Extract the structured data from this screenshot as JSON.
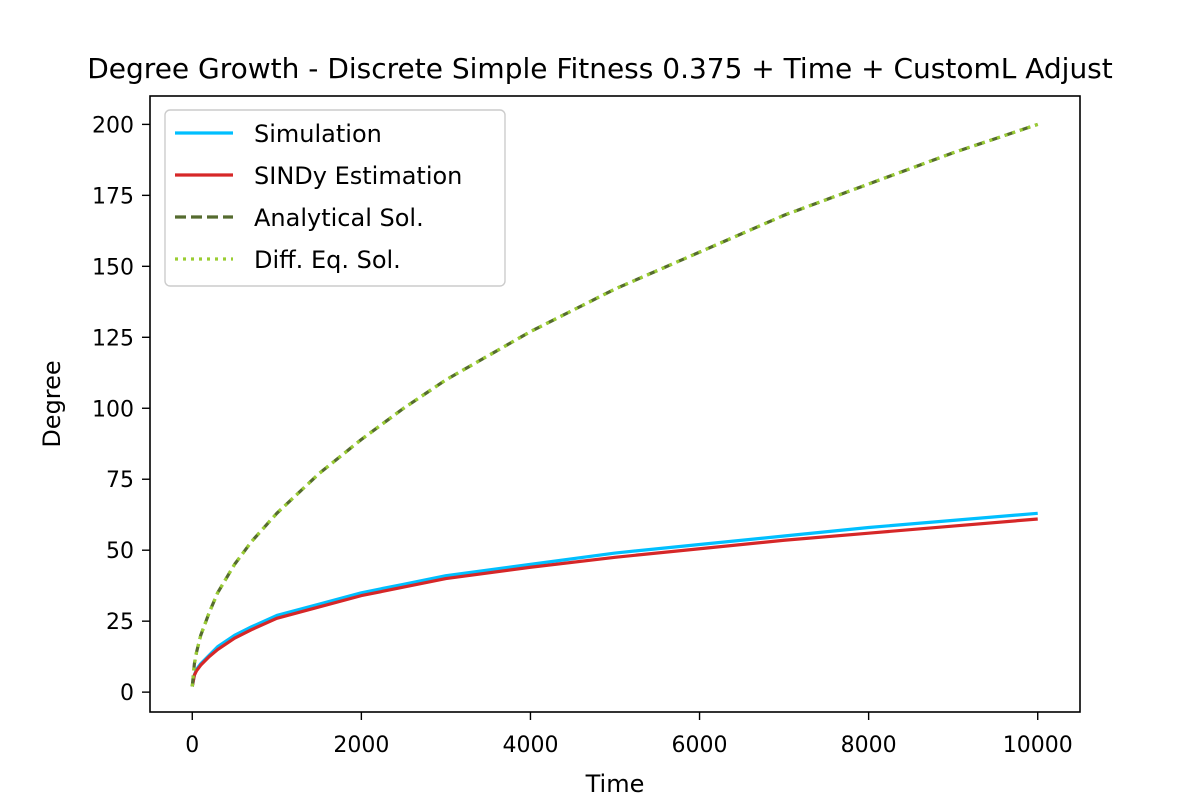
{
  "chart_data": {
    "type": "line",
    "title": "Degree Growth - Discrete Simple Fitness 0.375 + Time + CustomL Adjust",
    "xlabel": "Time",
    "ylabel": "Degree",
    "xlim": [
      -500,
      10500
    ],
    "ylim": [
      -7,
      210
    ],
    "x_ticks": [
      0,
      2000,
      4000,
      6000,
      8000,
      10000
    ],
    "y_ticks": [
      0,
      25,
      50,
      75,
      100,
      125,
      150,
      175,
      200
    ],
    "grid": false,
    "legend_position": "top-left",
    "series": [
      {
        "name": "Simulation",
        "color": "#00bfff",
        "style": "solid",
        "x": [
          0,
          25,
          50,
          100,
          200,
          300,
          500,
          700,
          1000,
          1500,
          2000,
          2500,
          3000,
          4000,
          5000,
          6000,
          7000,
          8000,
          9000,
          10000
        ],
        "y": [
          2,
          6,
          8,
          10,
          13,
          16,
          20,
          23,
          27,
          31,
          35,
          38,
          41,
          45,
          49,
          52,
          55,
          58,
          60.5,
          63
        ]
      },
      {
        "name": "SINDy Estimation",
        "color": "#d62728",
        "style": "solid",
        "x": [
          0,
          25,
          50,
          100,
          200,
          300,
          500,
          700,
          1000,
          1500,
          2000,
          2500,
          3000,
          4000,
          5000,
          6000,
          7000,
          8000,
          9000,
          10000
        ],
        "y": [
          2,
          6,
          7.5,
          9.5,
          12.5,
          15,
          19,
          22,
          26,
          30,
          34,
          37,
          40,
          44,
          47.5,
          50.5,
          53.5,
          56,
          58.5,
          61
        ]
      },
      {
        "name": "Analytical Sol.",
        "color": "#556b2f",
        "style": "dashed",
        "x": [
          0,
          25,
          50,
          100,
          200,
          300,
          500,
          700,
          1000,
          1500,
          2000,
          2500,
          3000,
          4000,
          5000,
          6000,
          7000,
          8000,
          9000,
          10000
        ],
        "y": [
          2,
          10,
          14,
          20,
          28,
          35,
          45,
          53,
          63,
          77,
          89,
          100,
          110,
          127,
          142,
          155,
          168,
          179,
          190,
          200
        ]
      },
      {
        "name": "Diff. Eq. Sol.",
        "color": "#9acd32",
        "style": "dotted",
        "x": [
          0,
          25,
          50,
          100,
          200,
          300,
          500,
          700,
          1000,
          1500,
          2000,
          2500,
          3000,
          4000,
          5000,
          6000,
          7000,
          8000,
          9000,
          10000
        ],
        "y": [
          2,
          10,
          14,
          20,
          28,
          35,
          45,
          53,
          63,
          77,
          89,
          100,
          110,
          127,
          142,
          155,
          168,
          179,
          190,
          200
        ]
      }
    ]
  }
}
